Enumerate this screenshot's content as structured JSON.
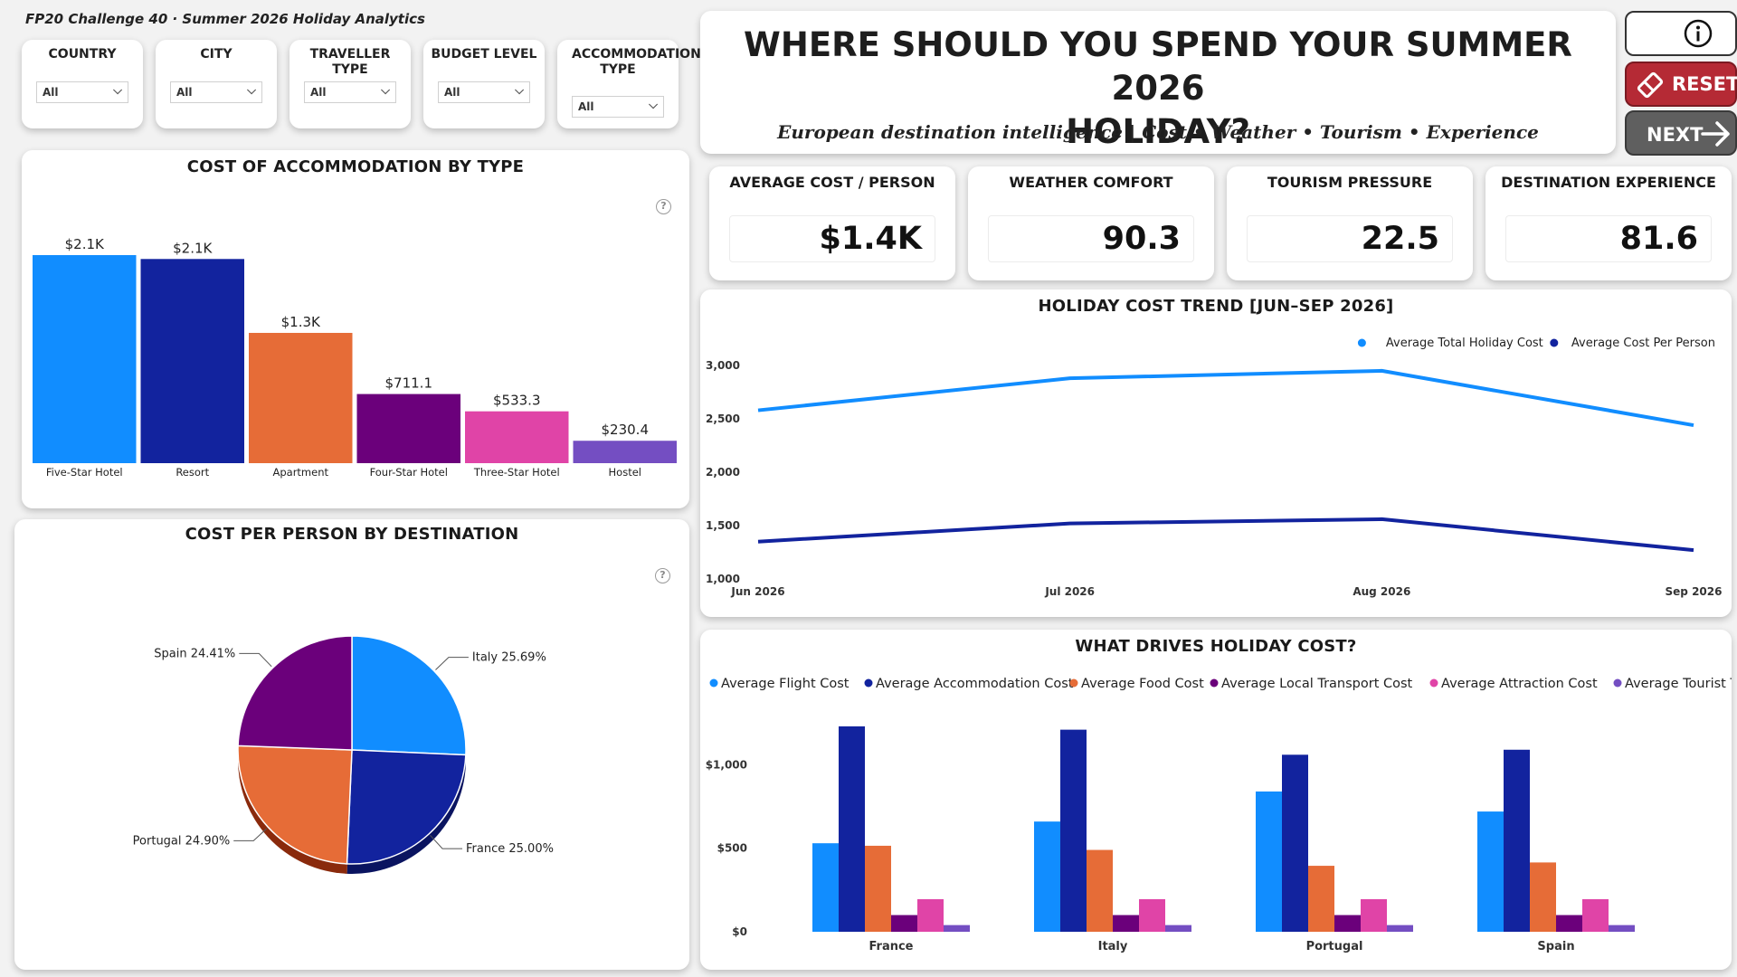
{
  "report": {
    "title": "FP20 Challenge 40 · Summer 2026 Holiday Analytics"
  },
  "slicers": [
    {
      "label": "COUNTRY",
      "value": "All"
    },
    {
      "label": "CITY",
      "value": "All"
    },
    {
      "label": "TRAVELLER TYPE",
      "value": "All"
    },
    {
      "label": "BUDGET LEVEL",
      "value": "All"
    },
    {
      "label": "ACCOMMODATION TYPE",
      "value": "All"
    }
  ],
  "header": {
    "title_line1": "WHERE SHOULD YOU SPEND YOUR SUMMER 2026",
    "title_line2": "HOLIDAY?",
    "subtitle": "European destination intelligence | Cost • Weather • Tourism • Experience"
  },
  "buttons": {
    "reset": "RESET",
    "next": "NEXT",
    "info_icon": "info-icon"
  },
  "kpis": [
    {
      "label": "AVERAGE COST / PERSON",
      "value": "$1.4K"
    },
    {
      "label": "WEATHER COMFORT",
      "value": "90.3"
    },
    {
      "label": "TOURISM PRESSURE",
      "value": "22.5"
    },
    {
      "label": "DESTINATION EXPERIENCE",
      "value": "81.6"
    }
  ],
  "colors": {
    "blue": "#118DFF",
    "navy": "#12239E",
    "orange": "#E66C37",
    "purple": "#6B007B",
    "pink": "#E044A7",
    "violet": "#744EC2",
    "reset": "#B52A35",
    "next": "#5F5F5F"
  },
  "chart_data": [
    {
      "id": "accommodation",
      "type": "bar",
      "title": "COST OF ACCOMMODATION BY TYPE",
      "categories": [
        "Five-Star Hotel",
        "Resort",
        "Apartment",
        "Four-Star Hotel",
        "Three-Star Hotel",
        "Hostel"
      ],
      "values": [
        2140,
        2100,
        1340,
        711.1,
        533.3,
        230.4
      ],
      "labels": [
        "$2.1K",
        "$2.1K",
        "$1.3K",
        "$711.1",
        "$533.3",
        "$230.4"
      ],
      "colors": [
        "#118DFF",
        "#12239E",
        "#E66C37",
        "#6B007B",
        "#E044A7",
        "#744EC2"
      ]
    },
    {
      "id": "destination",
      "type": "pie",
      "title": "COST PER PERSON BY DESTINATION",
      "categories": [
        "Italy",
        "France",
        "Portugal",
        "Spain"
      ],
      "values": [
        25.69,
        25.0,
        24.9,
        24.41
      ],
      "labels": [
        "Italy 25.69%",
        "France 25.00%",
        "Portugal 24.90%",
        "Spain 24.41%"
      ],
      "colors": [
        "#118DFF",
        "#12239E",
        "#E66C37",
        "#6B007B"
      ]
    },
    {
      "id": "trend",
      "type": "line",
      "title": "HOLIDAY COST TREND [JUN–SEP 2026]",
      "categories": [
        "Jun 2026",
        "Jul 2026",
        "Aug 2026",
        "Sep 2026"
      ],
      "ylim": [
        1000,
        3000
      ],
      "yticks": [
        "1,000",
        "1,500",
        "2,000",
        "2,500",
        "3,000"
      ],
      "legend_position": "top-right",
      "series": [
        {
          "name": "Average Total Holiday Cost",
          "color": "#118DFF",
          "values": [
            2580,
            2880,
            2950,
            2440
          ]
        },
        {
          "name": "Average Cost Per Person",
          "color": "#12239E",
          "values": [
            1350,
            1520,
            1560,
            1270
          ]
        }
      ]
    },
    {
      "id": "drivers",
      "type": "bar",
      "title": "WHAT DRIVES HOLIDAY COST?",
      "categories": [
        "France",
        "Italy",
        "Portugal",
        "Spain"
      ],
      "ylim": [
        0,
        1300
      ],
      "yticks": [
        "$0",
        "$500",
        "$1,000"
      ],
      "legend_position": "top",
      "series": [
        {
          "name": "Average Flight Cost",
          "color": "#118DFF",
          "values": [
            530,
            660,
            840,
            720
          ]
        },
        {
          "name": "Average Accommodation Cost",
          "color": "#12239E",
          "values": [
            1230,
            1210,
            1060,
            1090
          ]
        },
        {
          "name": "Average Food Cost",
          "color": "#E66C37",
          "values": [
            515,
            490,
            395,
            415
          ]
        },
        {
          "name": "Average Local Transport Cost",
          "color": "#6B007B",
          "values": [
            100,
            100,
            100,
            100
          ]
        },
        {
          "name": "Average Attraction Cost",
          "color": "#E044A7",
          "values": [
            195,
            195,
            195,
            195
          ]
        },
        {
          "name": "Average Tourist Tax",
          "color": "#744EC2",
          "values": [
            40,
            40,
            40,
            40
          ]
        }
      ]
    }
  ]
}
